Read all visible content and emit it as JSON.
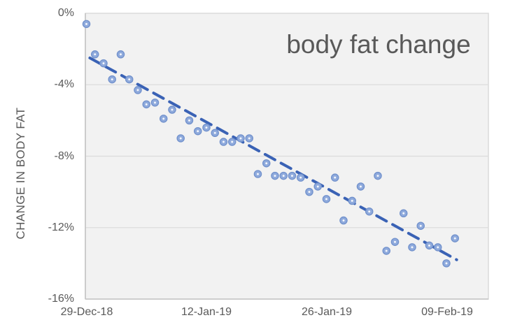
{
  "chart_data": {
    "type": "scatter",
    "title": "body fat change",
    "xlabel": "",
    "ylabel": "CHANGE IN BODY FAT",
    "x_unit": "days since first reading",
    "x_start_date": "29-Dec-18",
    "x_tick_labels": [
      "29-Dec-18",
      "12-Jan-19",
      "26-Jan-19",
      "09-Feb-19"
    ],
    "x_tick_days": [
      0,
      14,
      28,
      42
    ],
    "y_tick_labels": [
      "0%",
      "-4%",
      "-8%",
      "-12%",
      "-16%"
    ],
    "y_tick_values": [
      0,
      -4,
      -8,
      -12,
      -16
    ],
    "ylim": [
      -16,
      0
    ],
    "xlim_days": [
      -0.12,
      46.9
    ],
    "grid": "horizontal-only",
    "legend_position": "none",
    "series": [
      {
        "name": "change in body fat",
        "marker": "circle",
        "days": [
          0,
          1,
          2,
          3,
          4,
          5,
          6,
          7,
          8,
          9,
          10,
          11,
          12,
          13,
          14,
          15,
          16,
          17,
          18,
          19,
          20,
          21,
          22,
          23,
          24,
          25,
          26,
          27,
          28,
          29,
          30,
          31,
          32,
          33,
          34,
          35,
          36,
          37,
          38,
          39,
          40,
          41,
          42,
          43
        ],
        "values_pct": [
          -0.6,
          -2.3,
          -2.8,
          -3.7,
          -2.3,
          -3.7,
          -4.3,
          -5.1,
          -5.0,
          -5.9,
          -5.4,
          -7.0,
          -6.0,
          -6.6,
          -6.4,
          -6.7,
          -7.2,
          -7.2,
          -7.0,
          -7.0,
          -9.0,
          -8.4,
          -9.1,
          -9.1,
          -9.1,
          -9.2,
          -10.0,
          -9.7,
          -10.4,
          -9.2,
          -11.6,
          -10.5,
          -9.7,
          -11.1,
          -9.1,
          -13.3,
          -12.8,
          -11.2,
          -13.1,
          -11.9,
          -13.0,
          -13.1,
          -14.0,
          -12.6
        ]
      }
    ],
    "trendline": {
      "style": "dashed",
      "start_day": 0.4,
      "start_pct": -2.5,
      "end_day": 43.2,
      "end_pct": -13.8
    },
    "colors": {
      "title_text": "#595959",
      "axis_text": "#595959",
      "plot_background": "#F2F2F2",
      "gridline": "#DCDCDC",
      "plot_border": "#D9D9D9",
      "axis_line": "#C4C4C4",
      "marker_fill": "#8FAADC",
      "marker_border": "#7191CC",
      "marker_center_dot": "#F3F6FC",
      "trendline": "#3A62B5"
    }
  }
}
